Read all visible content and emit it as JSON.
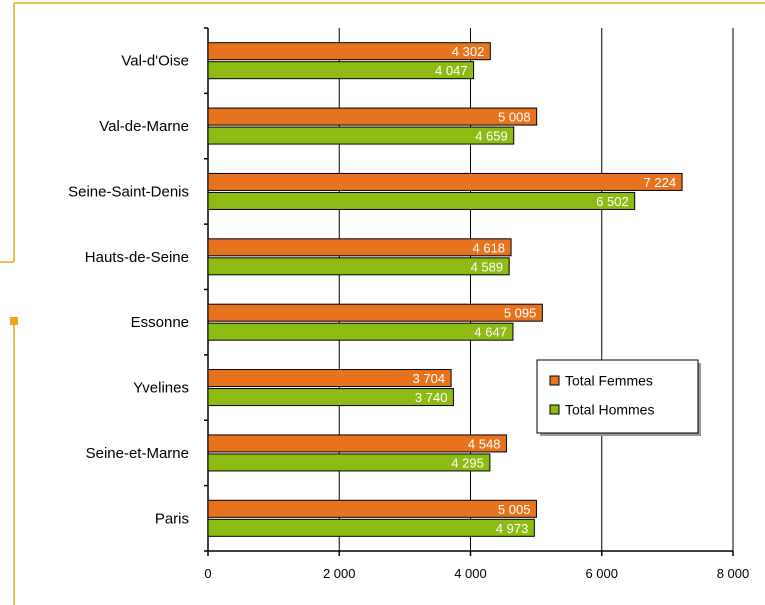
{
  "chart_data": {
    "type": "bar",
    "orientation": "horizontal",
    "categories": [
      "Val-d'Oise",
      "Val-de-Marne",
      "Seine-Saint-Denis",
      "Hauts-de-Seine",
      "Essonne",
      "Yvelines",
      "Seine-et-Marne",
      "Paris"
    ],
    "series": [
      {
        "name": "Total Femmes",
        "values": [
          4302,
          5008,
          7224,
          4618,
          5095,
          3704,
          4548,
          5005
        ],
        "color": "#E8731E"
      },
      {
        "name": "Total Hommes",
        "values": [
          4047,
          4659,
          6502,
          4589,
          4647,
          3740,
          4295,
          4973
        ],
        "color": "#8DBB13"
      }
    ],
    "value_labels": {
      "Total Femmes": [
        "4 302",
        "5 008",
        "7 224",
        "4 618",
        "5 095",
        "3 704",
        "4 548",
        "5 005"
      ],
      "Total Hommes": [
        "4 047",
        "4 659",
        "6 502",
        "4 589",
        "4 647",
        "3 740",
        "4 295",
        "4 973"
      ]
    },
    "xlim": [
      0,
      8000
    ],
    "xticks": [
      0,
      2000,
      4000,
      6000,
      8000
    ],
    "xtick_labels": [
      "0",
      "2 000",
      "4 000",
      "6 000",
      "8 000"
    ],
    "title": "",
    "xlabel": "",
    "ylabel": "",
    "grid": "vertical",
    "legend": {
      "placement": "right",
      "entries": [
        "Total Femmes",
        "Total Hommes"
      ]
    },
    "frame_color": "#F2A31B"
  }
}
